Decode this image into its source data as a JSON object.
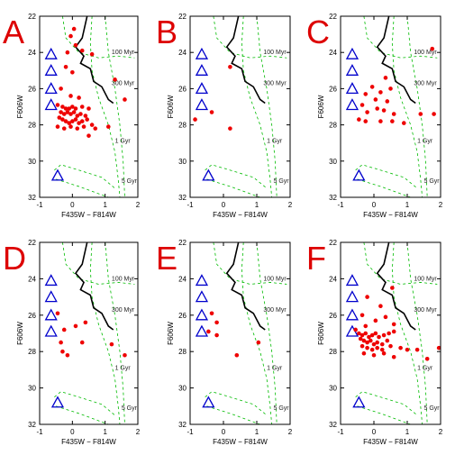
{
  "chart_data": [
    {
      "panel": "A",
      "type": "scatter",
      "xlabel": "F435W − F814W",
      "ylabel": "F606W",
      "xlim": [
        -1,
        2
      ],
      "ylim": [
        32,
        22
      ],
      "xticks": [
        -1,
        0,
        1,
        2
      ],
      "yticks": [
        22,
        24,
        26,
        28,
        30,
        32
      ],
      "annotations": [
        "100 Myr",
        "300 Myr",
        "1 Gyr",
        "5 Gyr"
      ],
      "triangles": [
        [
          -0.65,
          24.1
        ],
        [
          -0.65,
          25.0
        ],
        [
          -0.65,
          26.0
        ],
        [
          -0.65,
          26.9
        ],
        [
          -0.45,
          30.8
        ]
      ],
      "points": [
        [
          0.05,
          22.7
        ],
        [
          -0.05,
          23.1
        ],
        [
          0.1,
          23.6
        ],
        [
          0.3,
          23.9
        ],
        [
          -0.15,
          24.0
        ],
        [
          0.6,
          24.1
        ],
        [
          -0.2,
          24.8
        ],
        [
          0.0,
          25.1
        ],
        [
          1.3,
          25.5
        ],
        [
          -0.35,
          26.0
        ],
        [
          -0.05,
          26.4
        ],
        [
          0.2,
          26.5
        ],
        [
          1.6,
          26.6
        ],
        [
          -0.45,
          26.9
        ],
        [
          -0.3,
          27.0
        ],
        [
          -0.2,
          27.1
        ],
        [
          -0.1,
          27.1
        ],
        [
          0.0,
          27.0
        ],
        [
          0.1,
          27.1
        ],
        [
          0.3,
          27.0
        ],
        [
          0.5,
          27.1
        ],
        [
          -0.35,
          27.3
        ],
        [
          -0.25,
          27.4
        ],
        [
          -0.15,
          27.3
        ],
        [
          -0.05,
          27.4
        ],
        [
          0.05,
          27.3
        ],
        [
          0.15,
          27.5
        ],
        [
          0.25,
          27.4
        ],
        [
          0.4,
          27.5
        ],
        [
          -0.4,
          27.6
        ],
        [
          -0.3,
          27.7
        ],
        [
          -0.2,
          27.8
        ],
        [
          -0.1,
          27.9
        ],
        [
          0.0,
          27.8
        ],
        [
          0.1,
          27.7
        ],
        [
          0.2,
          27.9
        ],
        [
          0.3,
          27.8
        ],
        [
          0.45,
          27.7
        ],
        [
          0.6,
          28.0
        ],
        [
          -0.45,
          28.1
        ],
        [
          -0.25,
          28.2
        ],
        [
          -0.05,
          28.1
        ],
        [
          0.15,
          28.2
        ],
        [
          0.35,
          28.1
        ],
        [
          0.7,
          28.2
        ],
        [
          1.1,
          28.1
        ],
        [
          0.5,
          28.6
        ]
      ]
    },
    {
      "panel": "B",
      "type": "scatter",
      "xlabel": "F435W − F814W",
      "ylabel": "F606W",
      "xlim": [
        -1,
        2
      ],
      "ylim": [
        32,
        22
      ],
      "xticks": [
        -1,
        0,
        1,
        2
      ],
      "yticks": [
        22,
        24,
        26,
        28,
        30,
        32
      ],
      "annotations": [
        "100 Myr",
        "300 Myr",
        "1 Gyr",
        "5 Gyr"
      ],
      "triangles": [
        [
          -0.65,
          24.1
        ],
        [
          -0.65,
          25.0
        ],
        [
          -0.65,
          26.0
        ],
        [
          -0.65,
          26.9
        ],
        [
          -0.45,
          30.8
        ]
      ],
      "points": [
        [
          0.2,
          24.8
        ],
        [
          -0.35,
          27.3
        ],
        [
          -0.85,
          27.7
        ],
        [
          0.2,
          28.2
        ]
      ]
    },
    {
      "panel": "C",
      "type": "scatter",
      "xlabel": "F435W − F814W",
      "ylabel": "F606W",
      "xlim": [
        -1,
        2
      ],
      "ylim": [
        32,
        22
      ],
      "xticks": [
        -1,
        0,
        1,
        2
      ],
      "yticks": [
        22,
        24,
        26,
        28,
        30,
        32
      ],
      "annotations": [
        "100 Myr",
        "300 Myr",
        "1 Gyr",
        "5 Gyr"
      ],
      "triangles": [
        [
          -0.65,
          24.1
        ],
        [
          -0.65,
          25.0
        ],
        [
          -0.65,
          26.0
        ],
        [
          -0.65,
          26.9
        ],
        [
          -0.45,
          30.8
        ]
      ],
      "points": [
        [
          1.75,
          23.8
        ],
        [
          0.35,
          25.4
        ],
        [
          -0.05,
          25.9
        ],
        [
          0.5,
          26.0
        ],
        [
          0.2,
          26.2
        ],
        [
          -0.25,
          26.3
        ],
        [
          0.05,
          26.6
        ],
        [
          0.4,
          26.7
        ],
        [
          -0.35,
          26.9
        ],
        [
          0.1,
          27.1
        ],
        [
          0.3,
          27.2
        ],
        [
          -0.2,
          27.3
        ],
        [
          0.6,
          27.4
        ],
        [
          1.4,
          27.4
        ],
        [
          1.8,
          27.4
        ],
        [
          -0.45,
          27.7
        ],
        [
          -0.25,
          27.8
        ],
        [
          0.2,
          27.8
        ],
        [
          0.55,
          27.8
        ],
        [
          0.9,
          27.9
        ]
      ]
    },
    {
      "panel": "D",
      "type": "scatter",
      "xlabel": "F435W − F814W",
      "ylabel": "F606W",
      "xlim": [
        -1,
        2
      ],
      "ylim": [
        32,
        22
      ],
      "xticks": [
        -1,
        0,
        1,
        2
      ],
      "yticks": [
        22,
        24,
        26,
        28,
        30,
        32
      ],
      "annotations": [
        "100 Myr",
        "300 Myr",
        "1 Gyr",
        "5 Gyr"
      ],
      "triangles": [
        [
          -0.65,
          24.1
        ],
        [
          -0.65,
          25.0
        ],
        [
          -0.65,
          26.0
        ],
        [
          -0.65,
          26.9
        ],
        [
          -0.45,
          30.8
        ]
      ],
      "points": [
        [
          -0.45,
          25.9
        ],
        [
          -0.25,
          26.8
        ],
        [
          0.1,
          26.6
        ],
        [
          0.4,
          26.4
        ],
        [
          -0.35,
          27.5
        ],
        [
          0.3,
          27.5
        ],
        [
          1.2,
          27.6
        ],
        [
          -0.3,
          28.0
        ],
        [
          -0.15,
          28.2
        ],
        [
          1.6,
          28.2
        ]
      ]
    },
    {
      "panel": "E",
      "type": "scatter",
      "xlabel": "F435W − F814W",
      "ylabel": "F606W",
      "xlim": [
        -1,
        2
      ],
      "ylim": [
        32,
        22
      ],
      "xticks": [
        -1,
        0,
        1,
        2
      ],
      "yticks": [
        22,
        24,
        26,
        28,
        30,
        32
      ],
      "annotations": [
        "100 Myr",
        "300 Myr",
        "1 Gyr",
        "5 Gyr"
      ],
      "triangles": [
        [
          -0.65,
          24.1
        ],
        [
          -0.65,
          25.0
        ],
        [
          -0.65,
          26.0
        ],
        [
          -0.65,
          26.9
        ],
        [
          -0.45,
          30.8
        ]
      ],
      "points": [
        [
          -0.35,
          25.9
        ],
        [
          -0.2,
          26.4
        ],
        [
          -0.45,
          26.9
        ],
        [
          -0.2,
          27.1
        ],
        [
          1.05,
          27.5
        ],
        [
          0.4,
          28.2
        ]
      ]
    },
    {
      "panel": "F",
      "type": "scatter",
      "xlabel": "F435W − F814W",
      "ylabel": "F606W",
      "xlim": [
        -1,
        2
      ],
      "ylim": [
        32,
        22
      ],
      "xticks": [
        -1,
        0,
        1,
        2
      ],
      "yticks": [
        22,
        24,
        26,
        28,
        30,
        32
      ],
      "annotations": [
        "100 Myr",
        "300 Myr",
        "1 Gyr",
        "5 Gyr"
      ],
      "triangles": [
        [
          -0.65,
          24.1
        ],
        [
          -0.65,
          25.0
        ],
        [
          -0.65,
          26.0
        ],
        [
          -0.65,
          26.9
        ],
        [
          -0.45,
          30.8
        ]
      ],
      "points": [
        [
          0.55,
          24.5
        ],
        [
          -0.2,
          25.0
        ],
        [
          0.2,
          25.5
        ],
        [
          -0.35,
          26.0
        ],
        [
          0.05,
          26.3
        ],
        [
          0.35,
          26.1
        ],
        [
          0.6,
          26.5
        ],
        [
          -0.25,
          26.6
        ],
        [
          -0.55,
          26.8
        ],
        [
          -0.45,
          27.0
        ],
        [
          -0.35,
          27.1
        ],
        [
          -0.25,
          27.0
        ],
        [
          -0.15,
          27.2
        ],
        [
          -0.05,
          27.1
        ],
        [
          0.05,
          27.0
        ],
        [
          0.15,
          27.2
        ],
        [
          0.3,
          27.1
        ],
        [
          0.45,
          27.0
        ],
        [
          0.6,
          26.9
        ],
        [
          -0.4,
          27.3
        ],
        [
          -0.3,
          27.4
        ],
        [
          -0.2,
          27.5
        ],
        [
          -0.1,
          27.4
        ],
        [
          0.0,
          27.6
        ],
        [
          0.1,
          27.5
        ],
        [
          0.25,
          27.6
        ],
        [
          0.4,
          27.4
        ],
        [
          -0.35,
          27.7
        ],
        [
          -0.2,
          27.8
        ],
        [
          -0.05,
          27.9
        ],
        [
          0.1,
          27.8
        ],
        [
          0.25,
          27.9
        ],
        [
          0.5,
          27.7
        ],
        [
          0.8,
          27.8
        ],
        [
          1.0,
          27.9
        ],
        [
          1.3,
          27.9
        ],
        [
          -0.3,
          28.1
        ],
        [
          0.0,
          28.2
        ],
        [
          0.3,
          28.1
        ],
        [
          0.6,
          28.3
        ],
        [
          1.6,
          28.4
        ],
        [
          1.95,
          27.8
        ]
      ]
    }
  ],
  "colors": {
    "panel_letter": "#dd0000",
    "points": "#ee0000",
    "triangles": "#0000cc",
    "isochrones": "#00bb00",
    "black_curve": "#000000",
    "axes": "#000000"
  }
}
